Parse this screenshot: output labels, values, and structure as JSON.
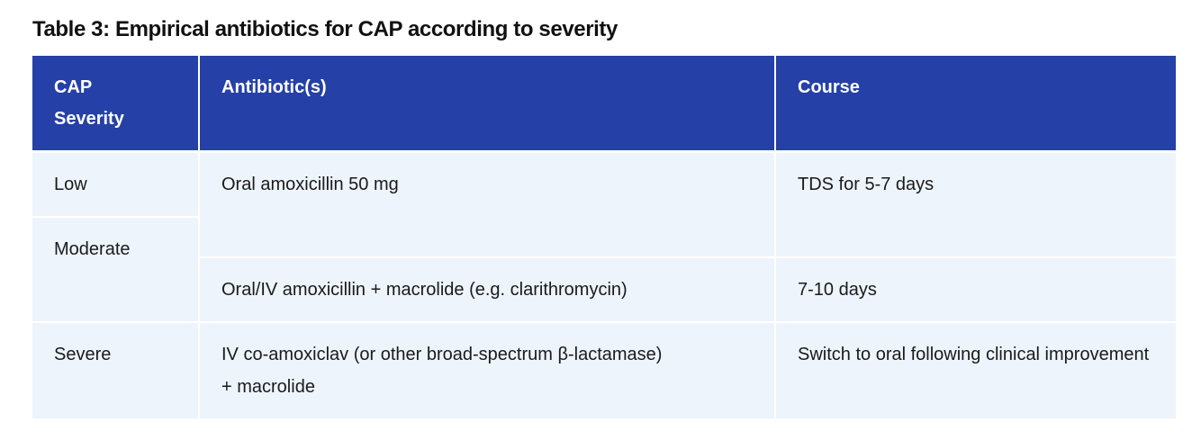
{
  "title": "Table 3: Empirical antibiotics for CAP according to severity",
  "table": {
    "headers": [
      "CAP Severity",
      "Antibiotic(s)",
      "Course"
    ],
    "rows": [
      [
        "Low",
        "Oral amoxicillin 50 mg",
        "TDS for 5-7 days"
      ],
      [
        "Moderate",
        "Oral/IV amoxicillin + macrolide (e.g. clarithromycin)",
        "7-10 days"
      ],
      [
        "Severe",
        "IV co-amoxiclav (or other broad-spectrum β-lactamase) + macrolide",
        "Switch to oral following clinical improvement"
      ]
    ]
  }
}
